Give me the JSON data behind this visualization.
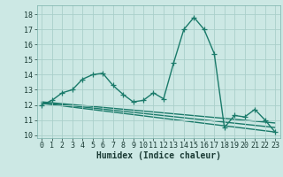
{
  "title": "",
  "xlabel": "Humidex (Indice chaleur)",
  "background_color": "#cce8e4",
  "grid_color": "#aacfca",
  "line_color": "#1a7a6a",
  "xlim": [
    -0.5,
    23.5
  ],
  "ylim": [
    9.8,
    18.6
  ],
  "yticks": [
    10,
    11,
    12,
    13,
    14,
    15,
    16,
    17,
    18
  ],
  "xticks": [
    0,
    1,
    2,
    3,
    4,
    5,
    6,
    7,
    8,
    9,
    10,
    11,
    12,
    13,
    14,
    15,
    16,
    17,
    18,
    19,
    20,
    21,
    22,
    23
  ],
  "main_x": [
    0,
    1,
    2,
    3,
    4,
    5,
    6,
    7,
    8,
    9,
    10,
    11,
    12,
    13,
    14,
    15,
    16,
    17,
    18,
    19,
    20,
    21,
    22,
    23
  ],
  "main_y": [
    12.0,
    12.3,
    12.8,
    13.0,
    13.7,
    14.0,
    14.1,
    13.3,
    12.7,
    12.2,
    12.3,
    12.8,
    12.4,
    14.8,
    17.0,
    17.8,
    17.0,
    15.4,
    10.5,
    11.3,
    11.2,
    11.7,
    11.0,
    10.2
  ],
  "line1_x": [
    0,
    23
  ],
  "line1_y": [
    12.1,
    10.2
  ],
  "line2_x": [
    0,
    23
  ],
  "line2_y": [
    12.15,
    10.5
  ],
  "line3_x": [
    0,
    23
  ],
  "line3_y": [
    12.2,
    10.8
  ],
  "marker_size": 4,
  "line_width": 1.0,
  "font_size_label": 7,
  "font_size_tick": 6
}
